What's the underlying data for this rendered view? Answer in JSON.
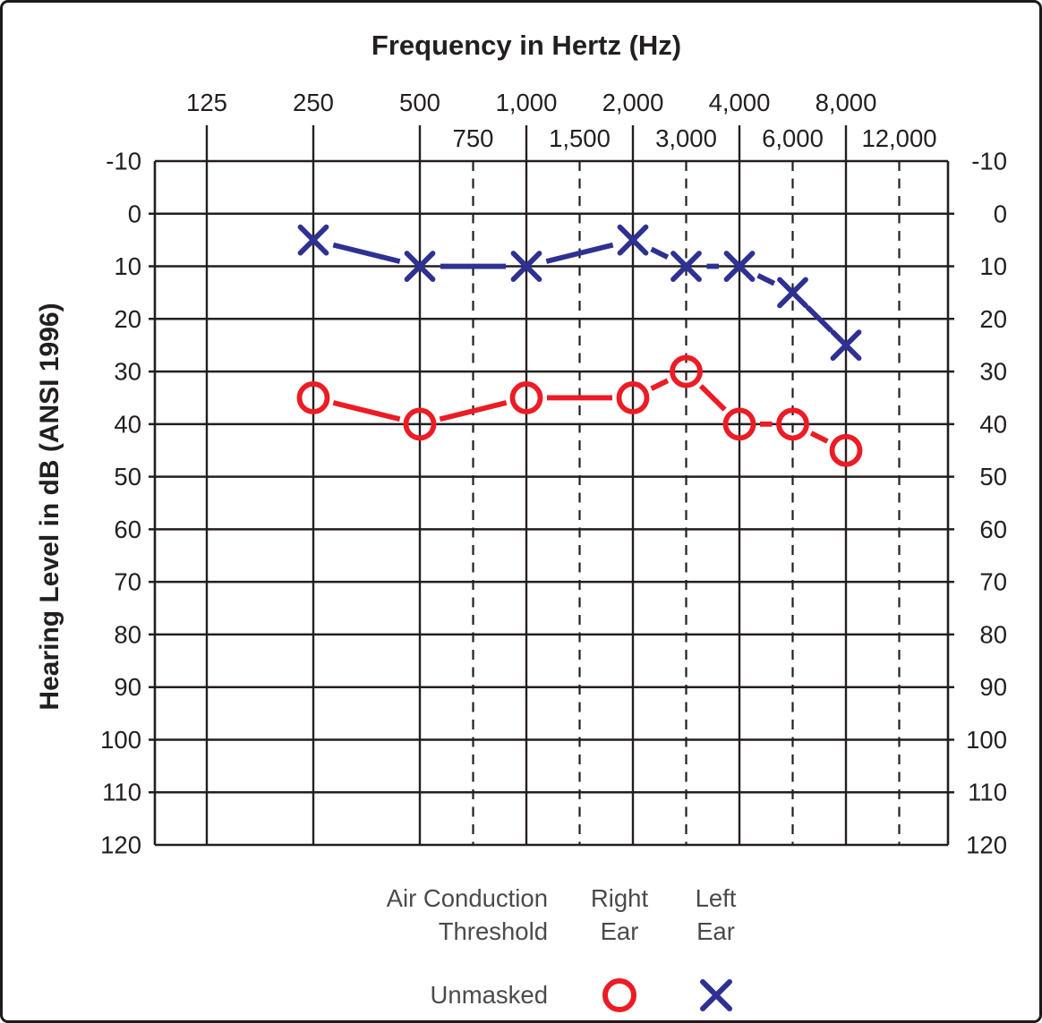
{
  "figure": {
    "title": "Frequency in Hertz (Hz)",
    "y_axis_title": "Hearing Level in dB (ANSI 1996)"
  },
  "colors": {
    "right_ear": "#ec1c24",
    "left_ear": "#2e3192",
    "grid": "#231f20",
    "text": "#231f20",
    "legend_text": "#4b4b4d"
  },
  "legend": {
    "header_line1": "Air Conduction",
    "header_line2": "Threshold",
    "right_ear_line1": "Right",
    "right_ear_line2": "Ear",
    "left_ear_line1": "Left",
    "left_ear_line2": "Ear",
    "unmasked_label": "Unmasked"
  },
  "chart_data": {
    "type": "line",
    "title": "Frequency in Hertz (Hz)",
    "xlabel": "Frequency in Hertz (Hz)",
    "ylabel": "Hearing Level in dB (ANSI 1996)",
    "ylim": [
      -10,
      120
    ],
    "y_ticks": [
      -10,
      0,
      10,
      20,
      30,
      40,
      50,
      60,
      70,
      80,
      90,
      100,
      110,
      120
    ],
    "grid": true,
    "legend_position": "bottom",
    "x_octave_ticks": [
      {
        "hz": 125,
        "label": "125"
      },
      {
        "hz": 250,
        "label": "250"
      },
      {
        "hz": 500,
        "label": "500"
      },
      {
        "hz": 1000,
        "label": "1,000"
      },
      {
        "hz": 2000,
        "label": "2,000"
      },
      {
        "hz": 4000,
        "label": "4,000"
      },
      {
        "hz": 8000,
        "label": "8,000"
      }
    ],
    "x_inter_octave_ticks": [
      {
        "hz": 750,
        "label": "750"
      },
      {
        "hz": 1500,
        "label": "1,500"
      },
      {
        "hz": 3000,
        "label": "3,000"
      },
      {
        "hz": 6000,
        "label": "6,000"
      },
      {
        "hz": 12000,
        "label": "12,000"
      }
    ],
    "series": [
      {
        "name": "Right Ear - Unmasked Air Conduction Threshold",
        "ear": "right",
        "marker": "circle",
        "color": "#ec1c24",
        "points": [
          {
            "hz": 250,
            "db": 35
          },
          {
            "hz": 500,
            "db": 40
          },
          {
            "hz": 1000,
            "db": 35
          },
          {
            "hz": 2000,
            "db": 35
          },
          {
            "hz": 3000,
            "db": 30
          },
          {
            "hz": 4000,
            "db": 40
          },
          {
            "hz": 6000,
            "db": 40
          },
          {
            "hz": 8000,
            "db": 45
          }
        ]
      },
      {
        "name": "Left Ear - Unmasked Air Conduction Threshold",
        "ear": "left",
        "marker": "x",
        "color": "#2e3192",
        "points": [
          {
            "hz": 250,
            "db": 5
          },
          {
            "hz": 500,
            "db": 10
          },
          {
            "hz": 1000,
            "db": 10
          },
          {
            "hz": 2000,
            "db": 5
          },
          {
            "hz": 3000,
            "db": 10
          },
          {
            "hz": 4000,
            "db": 10
          },
          {
            "hz": 6000,
            "db": 15
          },
          {
            "hz": 8000,
            "db": 25
          }
        ]
      }
    ]
  }
}
